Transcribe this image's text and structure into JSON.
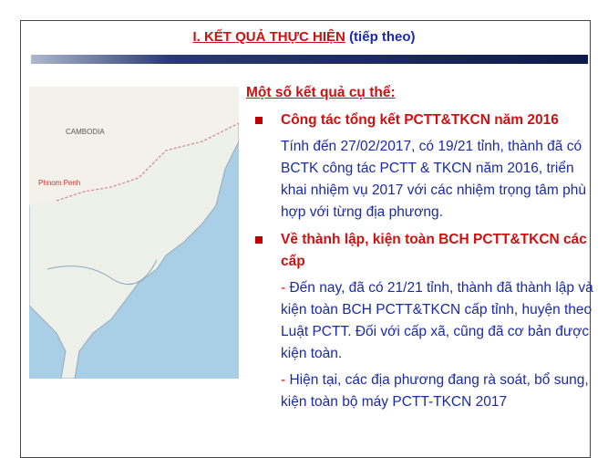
{
  "header": {
    "title": "I. KẾT QUẢ THỰC HIỆN",
    "suffix": "(tiếp theo)"
  },
  "map": {
    "labels": [
      "CAMBODIA",
      "Phnom Penh"
    ]
  },
  "content": {
    "heading": "Một số kết quả cụ thể:",
    "sections": [
      {
        "title": "Công tác tổng kết PCTT&TKCN năm 2016",
        "paragraphs": [
          {
            "dash": "",
            "text": "Tính đến 27/02/2017, có 19/21 tỉnh, thành đã có BCTK công tác PCTT & TKCN năm 2016, triển khai nhiệm vụ 2017 với các nhiệm trọng tâm phù hợp với từng địa phương."
          }
        ]
      },
      {
        "title": "Về thành lập, kiện toàn BCH PCTT&TKCN các cấp",
        "paragraphs": [
          {
            "dash": "-",
            "text": "Đến nay, đã có 21/21 tỉnh, thành đã thành lập và kiện toàn BCH PCTT&TKCN cấp tỉnh, huyện theo Luật PCTT. Đối với cấp xã, cũng đã cơ bản được kiện toàn."
          },
          {
            "dash": "-",
            "text": "Hiện tại, các địa phương đang rà soát, bổ sung, kiện toàn bộ máy PCTT-TKCN 2017"
          }
        ]
      }
    ]
  }
}
